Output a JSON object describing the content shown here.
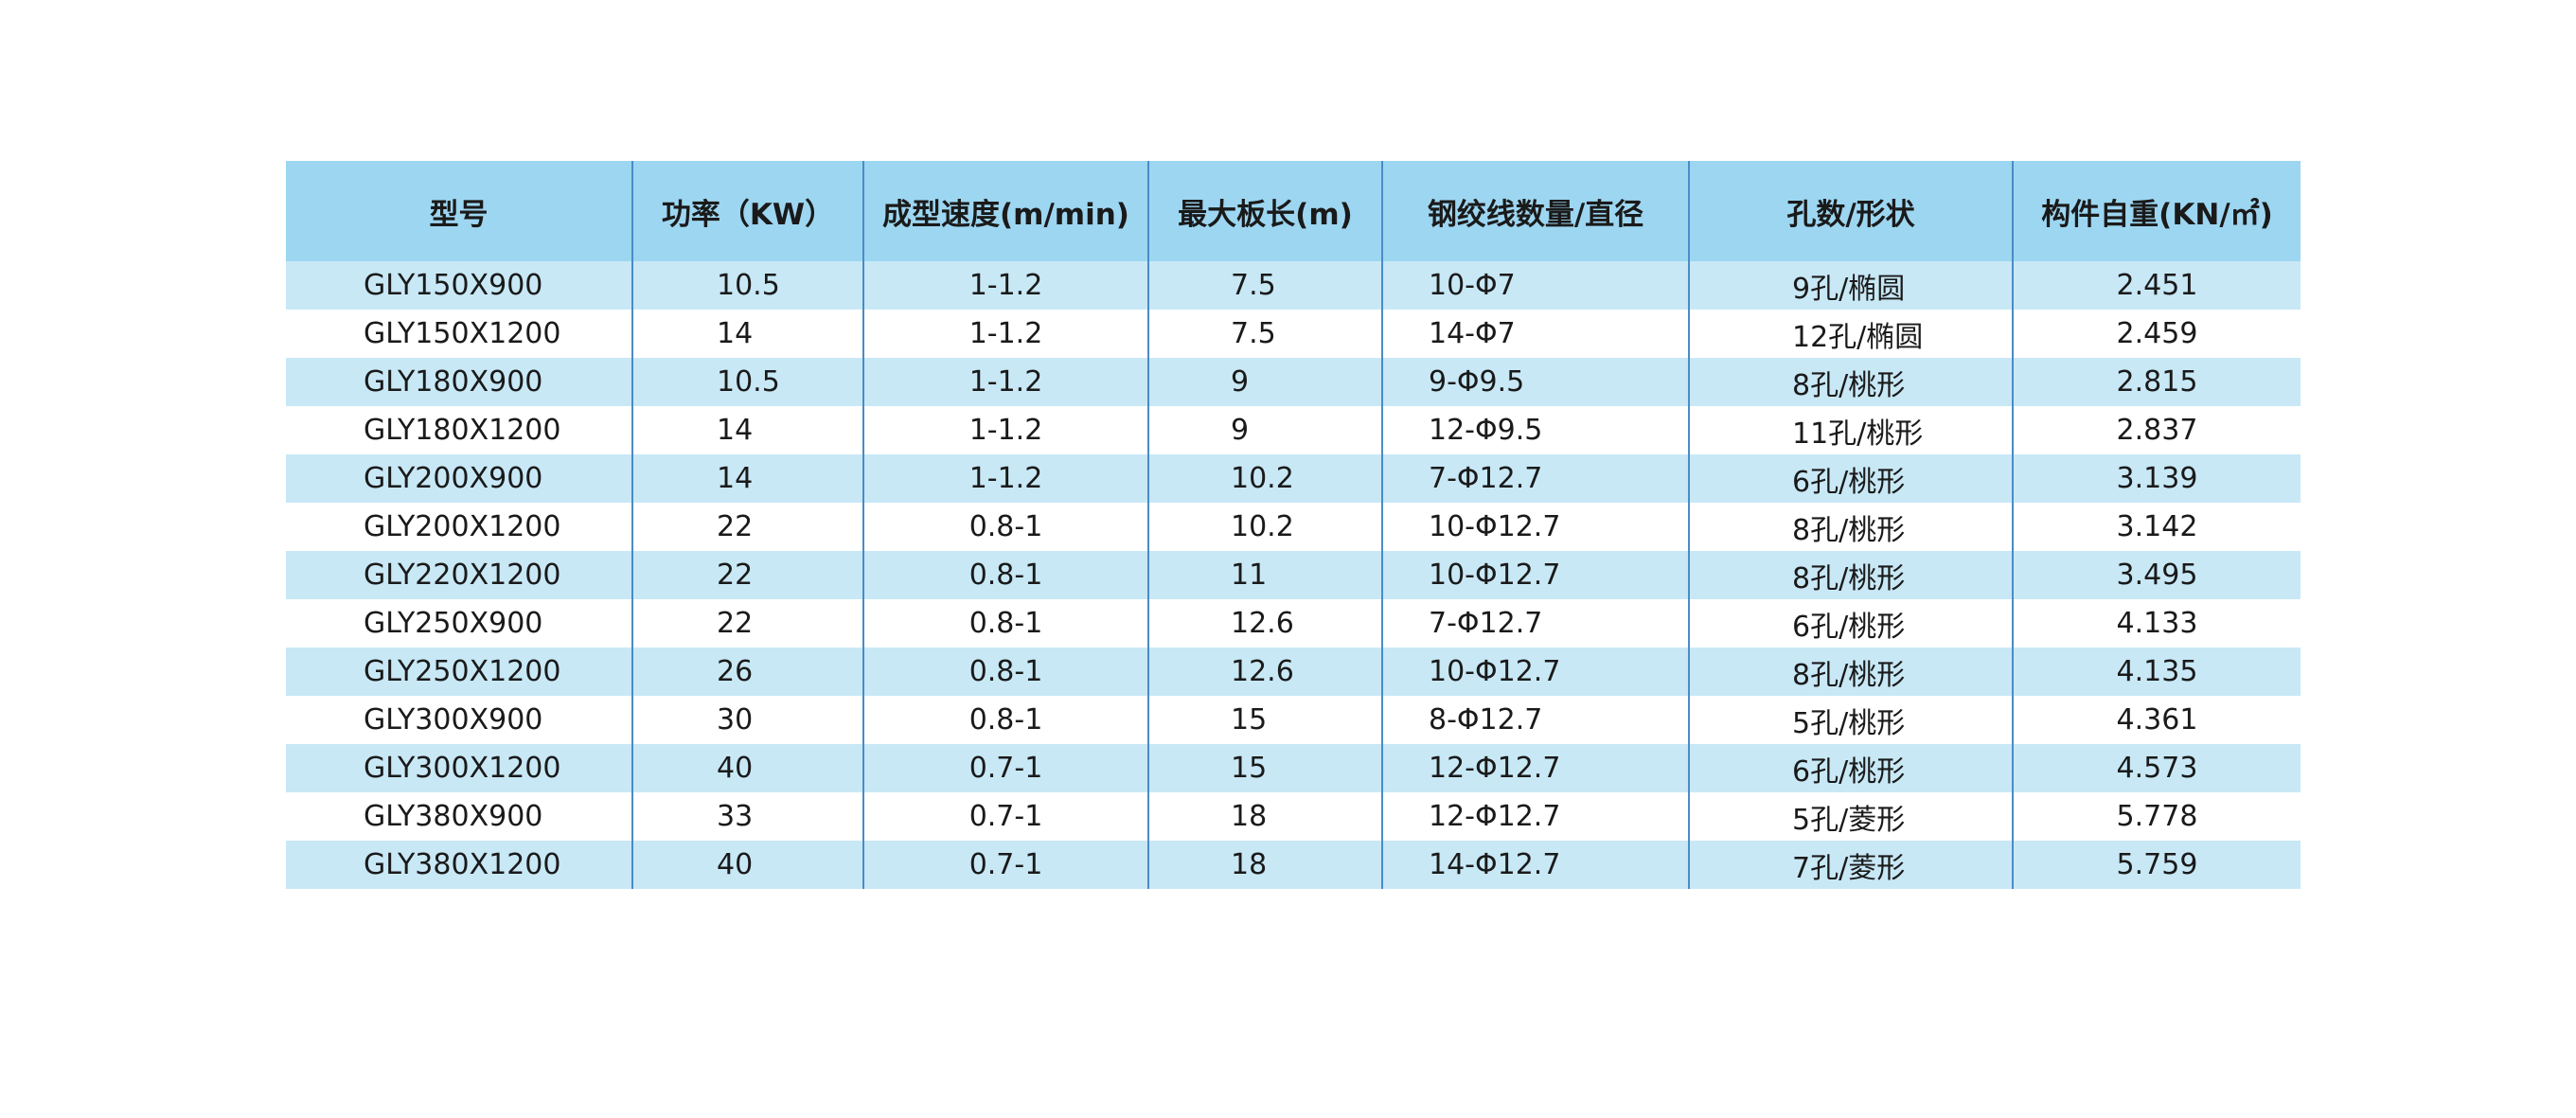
{
  "table": {
    "headers": [
      "型号",
      "功率（KW）",
      "成型速度(m/min)",
      "最大板长(m)",
      "钢绞线数量/直径",
      "孔数/形状",
      "构件自重(KN/㎡)"
    ],
    "rows": [
      [
        "GLY150X900",
        "10.5",
        "1-1.2",
        "7.5",
        "10-Φ7",
        "9孔/椭圆",
        "2.451"
      ],
      [
        "GLY150X1200",
        "14",
        "1-1.2",
        "7.5",
        "14-Φ7",
        "12孔/椭圆",
        "2.459"
      ],
      [
        "GLY180X900",
        "10.5",
        "1-1.2",
        "9",
        "9-Φ9.5",
        "8孔/桃形",
        "2.815"
      ],
      [
        "GLY180X1200",
        "14",
        "1-1.2",
        "9",
        "12-Φ9.5",
        "11孔/桃形",
        "2.837"
      ],
      [
        "GLY200X900",
        "14",
        "1-1.2",
        "10.2",
        "7-Φ12.7",
        "6孔/桃形",
        "3.139"
      ],
      [
        "GLY200X1200",
        "22",
        "0.8-1",
        "10.2",
        "10-Φ12.7",
        "8孔/桃形",
        "3.142"
      ],
      [
        "GLY220X1200",
        "22",
        "0.8-1",
        "11",
        "10-Φ12.7",
        "8孔/桃形",
        "3.495"
      ],
      [
        "GLY250X900",
        "22",
        "0.8-1",
        "12.6",
        "7-Φ12.7",
        "6孔/桃形",
        "4.133"
      ],
      [
        "GLY250X1200",
        "26",
        "0.8-1",
        "12.6",
        "10-Φ12.7",
        "8孔/桃形",
        "4.135"
      ],
      [
        "GLY300X900",
        "30",
        "0.8-1",
        "15",
        "8-Φ12.7",
        "5孔/桃形",
        "4.361"
      ],
      [
        "GLY300X1200",
        "40",
        "0.7-1",
        "15",
        "12-Φ12.7",
        "6孔/桃形",
        "4.573"
      ],
      [
        "GLY380X900",
        "33",
        "0.7-1",
        "18",
        "12-Φ12.7",
        "5孔/菱形",
        "5.778"
      ],
      [
        "GLY380X1200",
        "40",
        "0.7-1",
        "18",
        "14-Φ12.7",
        "7孔/菱形",
        "5.759"
      ]
    ]
  },
  "colors": {
    "header_bg": "#9dd6f1",
    "stripe_bg": "#c8e8f6",
    "row_bg": "#ffffff",
    "divider": "#4a8cc6",
    "text": "#1a1a1a"
  }
}
